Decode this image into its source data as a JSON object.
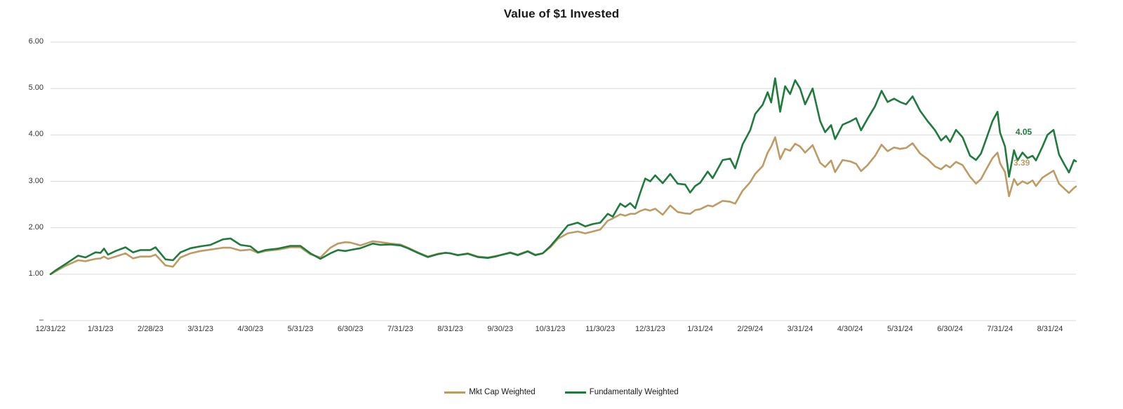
{
  "title": "Value of $1 Invested",
  "chart_data": {
    "type": "line",
    "title": "Value of $1 Invested",
    "xlabel": "",
    "ylabel": "",
    "grid": true,
    "legend_position": "bottom",
    "x_unit": "months since 12/31/2022 (x values are month offsets; category ticks are month-ends)",
    "categories": [
      "12/31/22",
      "1/31/23",
      "2/28/23",
      "3/31/23",
      "4/30/23",
      "5/31/23",
      "6/30/23",
      "7/31/23",
      "8/31/23",
      "9/30/23",
      "10/31/23",
      "11/30/23",
      "12/31/23",
      "1/31/24",
      "2/29/24",
      "3/31/24",
      "4/30/24",
      "5/31/24",
      "6/30/24",
      "7/31/24",
      "8/31/24"
    ],
    "yticks": {
      "values": [
        0,
        1,
        2,
        3,
        4,
        5,
        6
      ],
      "labels": [
        "–",
        "1.00",
        "2.00",
        "3.00",
        "4.00",
        "5.00",
        "6.00"
      ]
    },
    "ylim": [
      0,
      6
    ],
    "xlim": [
      0,
      20.52
    ],
    "gridline_color": "#d9d9d9",
    "x": [
      0,
      0.1,
      0.3,
      0.55,
      0.7,
      0.9,
      1.0,
      1.07,
      1.15,
      1.3,
      1.5,
      1.65,
      1.8,
      2.0,
      2.1,
      2.3,
      2.45,
      2.6,
      2.8,
      3.0,
      3.2,
      3.45,
      3.6,
      3.8,
      4.0,
      4.15,
      4.3,
      4.55,
      4.8,
      5.0,
      5.2,
      5.4,
      5.6,
      5.75,
      5.9,
      6.0,
      6.2,
      6.45,
      6.6,
      6.8,
      7.0,
      7.15,
      7.35,
      7.55,
      7.75,
      7.9,
      8.0,
      8.15,
      8.35,
      8.55,
      8.75,
      8.9,
      9.0,
      9.2,
      9.35,
      9.55,
      9.7,
      9.85,
      10.0,
      10.15,
      10.35,
      10.55,
      10.7,
      10.85,
      11.0,
      11.15,
      11.25,
      11.4,
      11.5,
      11.6,
      11.7,
      11.8,
      11.9,
      12.0,
      12.1,
      12.25,
      12.4,
      12.55,
      12.7,
      12.8,
      12.9,
      13.0,
      13.15,
      13.25,
      13.45,
      13.6,
      13.7,
      13.85,
      14.0,
      14.1,
      14.25,
      14.35,
      14.42,
      14.5,
      14.6,
      14.7,
      14.8,
      14.9,
      15.0,
      15.1,
      15.25,
      15.4,
      15.5,
      15.62,
      15.7,
      15.85,
      16.0,
      16.12,
      16.22,
      16.35,
      16.5,
      16.63,
      16.75,
      16.88,
      17.0,
      17.12,
      17.25,
      17.4,
      17.55,
      17.7,
      17.82,
      17.92,
      18.0,
      18.12,
      18.25,
      18.4,
      18.52,
      18.62,
      18.72,
      18.85,
      18.95,
      19.0,
      19.1,
      19.18,
      19.28,
      19.35,
      19.45,
      19.55,
      19.65,
      19.72,
      19.85,
      19.95,
      20.07,
      20.18,
      20.28,
      20.38,
      20.48,
      20.52
    ],
    "series": [
      {
        "name": "Mkt Cap Weighted",
        "color": "#BE9B64",
        "values": [
          1.0,
          1.06,
          1.18,
          1.3,
          1.28,
          1.33,
          1.34,
          1.38,
          1.33,
          1.38,
          1.45,
          1.34,
          1.38,
          1.38,
          1.42,
          1.19,
          1.16,
          1.36,
          1.45,
          1.5,
          1.53,
          1.57,
          1.57,
          1.51,
          1.53,
          1.46,
          1.5,
          1.53,
          1.58,
          1.58,
          1.43,
          1.36,
          1.57,
          1.66,
          1.69,
          1.68,
          1.62,
          1.71,
          1.69,
          1.66,
          1.64,
          1.57,
          1.47,
          1.38,
          1.44,
          1.46,
          1.45,
          1.41,
          1.45,
          1.38,
          1.36,
          1.39,
          1.41,
          1.47,
          1.42,
          1.5,
          1.42,
          1.45,
          1.58,
          1.76,
          1.88,
          1.92,
          1.88,
          1.92,
          1.96,
          2.15,
          2.2,
          2.29,
          2.26,
          2.3,
          2.3,
          2.36,
          2.4,
          2.37,
          2.41,
          2.28,
          2.48,
          2.34,
          2.31,
          2.3,
          2.38,
          2.4,
          2.48,
          2.46,
          2.58,
          2.56,
          2.52,
          2.8,
          2.98,
          3.16,
          3.33,
          3.62,
          3.75,
          3.95,
          3.48,
          3.7,
          3.66,
          3.81,
          3.75,
          3.62,
          3.78,
          3.4,
          3.31,
          3.45,
          3.2,
          3.46,
          3.43,
          3.38,
          3.22,
          3.35,
          3.55,
          3.79,
          3.65,
          3.73,
          3.7,
          3.72,
          3.82,
          3.6,
          3.48,
          3.32,
          3.26,
          3.35,
          3.3,
          3.42,
          3.35,
          3.1,
          2.95,
          3.05,
          3.25,
          3.5,
          3.62,
          3.39,
          3.2,
          2.68,
          3.05,
          2.92,
          3.0,
          2.95,
          3.02,
          2.9,
          3.08,
          3.15,
          3.23,
          2.95,
          2.85,
          2.75,
          2.86,
          2.89
        ]
      },
      {
        "name": "Fundamentally Weighted",
        "color": "#1E7B3C",
        "values": [
          1.0,
          1.08,
          1.22,
          1.4,
          1.36,
          1.47,
          1.46,
          1.55,
          1.42,
          1.5,
          1.58,
          1.47,
          1.52,
          1.52,
          1.58,
          1.32,
          1.3,
          1.47,
          1.56,
          1.6,
          1.63,
          1.75,
          1.77,
          1.63,
          1.6,
          1.47,
          1.52,
          1.55,
          1.61,
          1.61,
          1.45,
          1.33,
          1.45,
          1.52,
          1.5,
          1.52,
          1.56,
          1.66,
          1.63,
          1.64,
          1.62,
          1.56,
          1.46,
          1.37,
          1.43,
          1.46,
          1.45,
          1.41,
          1.44,
          1.37,
          1.35,
          1.38,
          1.41,
          1.46,
          1.41,
          1.49,
          1.41,
          1.45,
          1.6,
          1.79,
          2.05,
          2.11,
          2.03,
          2.08,
          2.11,
          2.3,
          2.24,
          2.52,
          2.45,
          2.53,
          2.42,
          2.75,
          3.06,
          3.0,
          3.13,
          2.96,
          3.16,
          2.95,
          2.93,
          2.76,
          2.9,
          2.97,
          3.21,
          3.07,
          3.46,
          3.49,
          3.28,
          3.8,
          4.1,
          4.45,
          4.65,
          4.92,
          4.7,
          5.22,
          4.5,
          5.05,
          4.88,
          5.18,
          5.0,
          4.66,
          5.0,
          4.3,
          4.06,
          4.21,
          3.91,
          4.22,
          4.29,
          4.36,
          4.1,
          4.35,
          4.62,
          4.95,
          4.71,
          4.78,
          4.71,
          4.66,
          4.83,
          4.52,
          4.3,
          4.1,
          3.88,
          3.98,
          3.85,
          4.11,
          3.95,
          3.55,
          3.46,
          3.6,
          3.9,
          4.3,
          4.5,
          4.05,
          3.75,
          3.1,
          3.67,
          3.45,
          3.62,
          3.5,
          3.55,
          3.45,
          3.75,
          4.0,
          4.11,
          3.58,
          3.38,
          3.19,
          3.46,
          3.43
        ]
      }
    ],
    "annotations": [
      {
        "text": "4.05",
        "series": "Fundamentally Weighted",
        "color": "#1E7B3C",
        "x": 19.31,
        "y": 4.05
      },
      {
        "text": "3.39",
        "series": "Mkt Cap Weighted",
        "color": "#BE9B64",
        "x": 19.27,
        "y": 3.39
      }
    ]
  },
  "legend": {
    "items": [
      {
        "label": "Mkt Cap Weighted",
        "color": "#BE9B64"
      },
      {
        "label": "Fundamentally Weighted",
        "color": "#1E7B3C"
      }
    ]
  }
}
